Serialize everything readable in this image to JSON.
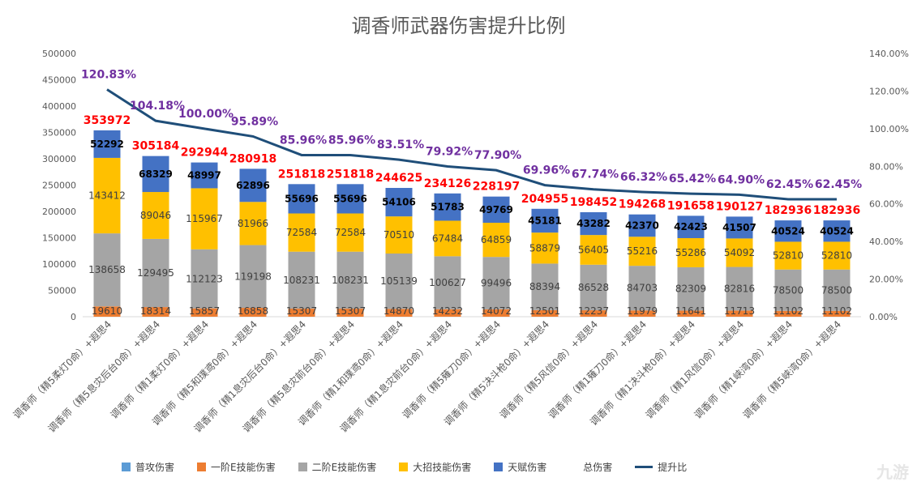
{
  "chart_data": {
    "type": "bar",
    "title": "调香师武器伤害提升比例",
    "categories": [
      "调香师（精5柔灯0命）+遐思4",
      "调香师（精5息灾后台0命）+遐思4",
      "调香师（精1柔灯0命）+遐思4",
      "调香师（精5和璞鸢0命）+遐思4",
      "调香师（精1息灾后台0命）+遐思4",
      "调香师（精5息灾前台0命）+遐思4",
      "调香师（精1和璞鸢0命）+遐思4",
      "调香师（精1息灾前台0命）+遐思4",
      "调香师（精5薙刀0命）+遐思4",
      "调香师（精5决斗枪0命）+遐思4",
      "调香师（精5风信0命）+遐思4",
      "调香师（精1薙刀0命）+遐思4",
      "调香师（精1决斗枪0命）+遐思4",
      "调香师（精1风信0命）+遐思4",
      "调香师（精1峡湾0命）+遐思4",
      "调香师（精5峡湾0命）+遐思4"
    ],
    "series": [
      {
        "name": "普攻伤害",
        "color": "#5b9bd5",
        "values": [
          0,
          0,
          0,
          0,
          0,
          0,
          0,
          0,
          0,
          0,
          0,
          0,
          0,
          0,
          0,
          0
        ]
      },
      {
        "name": "一阶E技能伤害",
        "color": "#ed7d31",
        "values": [
          19610,
          18314,
          15857,
          16858,
          15307,
          15307,
          14870,
          14232,
          14072,
          12501,
          12237,
          11979,
          11641,
          11713,
          11102,
          11102
        ]
      },
      {
        "name": "二阶E技能伤害",
        "color": "#a5a5a5",
        "values": [
          138658,
          129495,
          112123,
          119198,
          108231,
          108231,
          105139,
          100627,
          99496,
          88394,
          86528,
          84703,
          82309,
          82816,
          78500,
          78500
        ]
      },
      {
        "name": "大招技能伤害",
        "color": "#ffc000",
        "values": [
          143412,
          89046,
          115967,
          81966,
          72584,
          72584,
          70510,
          67484,
          64859,
          58879,
          56405,
          55216,
          55286,
          54092,
          52810,
          52810
        ]
      },
      {
        "name": "天赋伤害",
        "color": "#4472c4",
        "values": [
          52292,
          68329,
          48997,
          62896,
          55696,
          55696,
          54106,
          51783,
          49769,
          45181,
          43282,
          42370,
          42423,
          41507,
          40524,
          40524
        ]
      },
      {
        "name": "总伤害",
        "color": "#ff0000",
        "values": [
          353972,
          305184,
          292944,
          280918,
          251818,
          251818,
          244625,
          234126,
          228197,
          204955,
          198452,
          194268,
          191658,
          190127,
          182936,
          182936
        ]
      },
      {
        "name": "提升比例",
        "color": "#1f4e79",
        "axis": "right",
        "type": "line",
        "values": [
          120.83,
          104.18,
          100.0,
          95.89,
          85.96,
          85.96,
          83.51,
          79.92,
          77.9,
          69.96,
          67.74,
          66.32,
          65.42,
          64.9,
          62.45,
          62.45
        ],
        "labels": [
          "120.83%",
          "104.18%",
          "100.00%",
          "95.89%",
          "85.96%",
          "85.96%",
          "83.51%",
          "79.92%",
          "77.90%",
          "69.96%",
          "67.74%",
          "66.32%",
          "65.42%",
          "64.90%",
          "62.45%",
          "62.45%"
        ]
      }
    ],
    "left_axis": {
      "ylim": [
        0,
        500000
      ],
      "ticks": [
        0,
        50000,
        100000,
        150000,
        200000,
        250000,
        300000,
        350000,
        400000,
        450000,
        500000
      ]
    },
    "right_axis": {
      "ylim": [
        0,
        140
      ],
      "ticks": [
        "0.00%",
        "20.00%",
        "40.00%",
        "60.00%",
        "80.00%",
        "100.00%",
        "120.00%",
        "140.00%"
      ]
    },
    "grid": false,
    "legend_position": "bottom",
    "pct_label_color": "#7030a0",
    "legend_last_label": "提升比"
  },
  "watermark": "九游"
}
